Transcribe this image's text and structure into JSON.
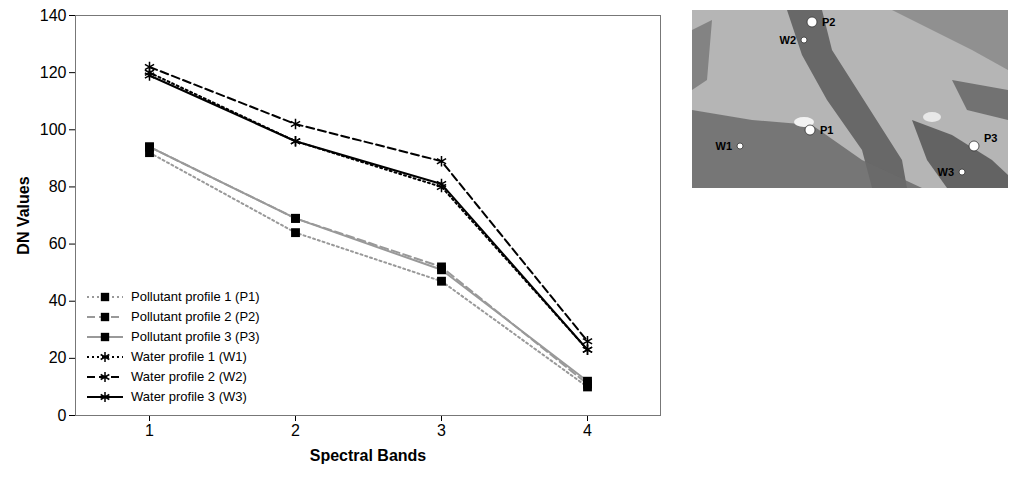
{
  "chart_data": {
    "type": "line",
    "x_label": "Spectral Bands",
    "y_label": "DN Values",
    "categories": [
      "1",
      "2",
      "3",
      "4"
    ],
    "ylim": [
      0,
      140
    ],
    "yticks": [
      0,
      20,
      40,
      60,
      80,
      100,
      120,
      140
    ],
    "grid": false,
    "legend": "bottom-left",
    "series": [
      {
        "name": "Pollutant profile 1 (P1)",
        "color": "#999999",
        "line_style": "dotted",
        "marker": "square",
        "values": [
          92,
          64,
          47,
          10
        ]
      },
      {
        "name": "Pollutant profile 2 (P2)",
        "color": "#999999",
        "line_style": "dashed",
        "marker": "square",
        "values": [
          94,
          69,
          52,
          11
        ]
      },
      {
        "name": "Pollutant profile 3 (P3)",
        "color": "#999999",
        "line_style": "solid",
        "marker": "square",
        "values": [
          94,
          69,
          51,
          12
        ]
      },
      {
        "name": "Water profile 1 (W1)",
        "color": "#000000",
        "line_style": "dotted",
        "marker": "asterisk",
        "values": [
          120,
          96,
          80,
          23
        ]
      },
      {
        "name": "Water profile 2 (W2)",
        "color": "#000000",
        "line_style": "dashed",
        "marker": "asterisk",
        "values": [
          122,
          102,
          89,
          26
        ]
      },
      {
        "name": "Water profile 3 (W3)",
        "color": "#000000",
        "line_style": "solid",
        "marker": "asterisk",
        "values": [
          119,
          96,
          81,
          23
        ]
      }
    ]
  },
  "image": {
    "labels": [
      "P1",
      "P2",
      "P3",
      "W1",
      "W2",
      "W3"
    ]
  }
}
